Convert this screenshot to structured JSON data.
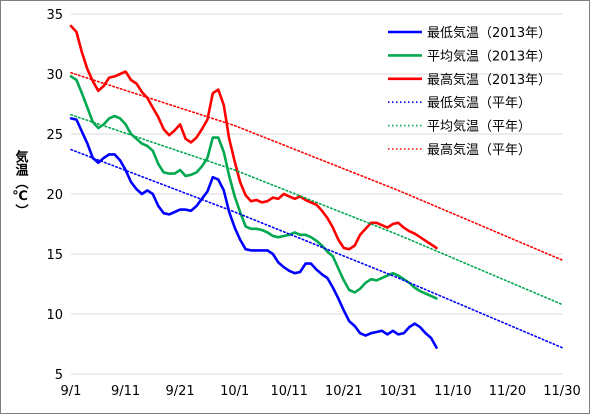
{
  "chart_data": {
    "type": "line",
    "ylabel": "気温（℃）",
    "ylim": [
      5,
      35
    ],
    "yticks": [
      5,
      10,
      15,
      20,
      25,
      30,
      35
    ],
    "xlim": [
      0,
      90
    ],
    "xticks": [
      {
        "day": 0,
        "label": "9/1"
      },
      {
        "day": 10,
        "label": "9/11"
      },
      {
        "day": 20,
        "label": "9/21"
      },
      {
        "day": 30,
        "label": "10/1"
      },
      {
        "day": 40,
        "label": "10/11"
      },
      {
        "day": 50,
        "label": "10/21"
      },
      {
        "day": 60,
        "label": "10/31"
      },
      {
        "day": 70,
        "label": "11/10"
      },
      {
        "day": 80,
        "label": "11/20"
      },
      {
        "day": 90,
        "label": "11/30"
      }
    ],
    "grid": "horizontal",
    "legend_position": "top-right",
    "series": [
      {
        "name": "最低気温（2013年）",
        "color": "#0000ff",
        "style": "solid",
        "points": [
          [
            0,
            26.3
          ],
          [
            1,
            26.2
          ],
          [
            2,
            25.2
          ],
          [
            3,
            24.2
          ],
          [
            4,
            23.0
          ],
          [
            5,
            22.6
          ],
          [
            6,
            23.0
          ],
          [
            7,
            23.3
          ],
          [
            8,
            23.3
          ],
          [
            9,
            22.8
          ],
          [
            10,
            22.0
          ],
          [
            11,
            21.0
          ],
          [
            12,
            20.4
          ],
          [
            13,
            20.0
          ],
          [
            14,
            20.3
          ],
          [
            15,
            20.0
          ],
          [
            16,
            19.0
          ],
          [
            17,
            18.4
          ],
          [
            18,
            18.3
          ],
          [
            19,
            18.5
          ],
          [
            20,
            18.7
          ],
          [
            21,
            18.7
          ],
          [
            22,
            18.6
          ],
          [
            23,
            19.0
          ],
          [
            24,
            19.6
          ],
          [
            25,
            20.2
          ],
          [
            26,
            21.4
          ],
          [
            27,
            21.2
          ],
          [
            28,
            20.3
          ],
          [
            29,
            18.5
          ],
          [
            30,
            17.2
          ],
          [
            31,
            16.2
          ],
          [
            32,
            15.4
          ],
          [
            33,
            15.3
          ],
          [
            34,
            15.3
          ],
          [
            35,
            15.3
          ],
          [
            36,
            15.3
          ],
          [
            37,
            15.0
          ],
          [
            38,
            14.3
          ],
          [
            39,
            13.9
          ],
          [
            40,
            13.6
          ],
          [
            41,
            13.4
          ],
          [
            42,
            13.5
          ],
          [
            43,
            14.2
          ],
          [
            44,
            14.2
          ],
          [
            45,
            13.7
          ],
          [
            46,
            13.3
          ],
          [
            47,
            13.0
          ],
          [
            48,
            12.2
          ],
          [
            49,
            11.3
          ],
          [
            50,
            10.3
          ],
          [
            51,
            9.4
          ],
          [
            52,
            9.0
          ],
          [
            53,
            8.4
          ],
          [
            54,
            8.2
          ],
          [
            55,
            8.4
          ],
          [
            56,
            8.5
          ],
          [
            57,
            8.6
          ],
          [
            58,
            8.3
          ],
          [
            59,
            8.6
          ],
          [
            60,
            8.3
          ],
          [
            61,
            8.4
          ],
          [
            62,
            8.9
          ],
          [
            63,
            9.2
          ],
          [
            64,
            8.9
          ],
          [
            65,
            8.4
          ],
          [
            66,
            8.0
          ],
          [
            67,
            7.2
          ]
        ]
      },
      {
        "name": "平均気温（2013年）",
        "color": "#00a84f",
        "style": "solid",
        "points": [
          [
            0,
            29.8
          ],
          [
            1,
            29.5
          ],
          [
            2,
            28.4
          ],
          [
            3,
            27.2
          ],
          [
            4,
            26.0
          ],
          [
            5,
            25.5
          ],
          [
            6,
            25.8
          ],
          [
            7,
            26.3
          ],
          [
            8,
            26.5
          ],
          [
            9,
            26.3
          ],
          [
            10,
            25.8
          ],
          [
            11,
            25.0
          ],
          [
            12,
            24.6
          ],
          [
            13,
            24.2
          ],
          [
            14,
            24.0
          ],
          [
            15,
            23.6
          ],
          [
            16,
            22.5
          ],
          [
            17,
            21.8
          ],
          [
            18,
            21.7
          ],
          [
            19,
            21.7
          ],
          [
            20,
            22.0
          ],
          [
            21,
            21.5
          ],
          [
            22,
            21.6
          ],
          [
            23,
            21.8
          ],
          [
            24,
            22.3
          ],
          [
            25,
            23.0
          ],
          [
            26,
            24.7
          ],
          [
            27,
            24.7
          ],
          [
            28,
            23.5
          ],
          [
            29,
            21.5
          ],
          [
            30,
            19.8
          ],
          [
            31,
            18.5
          ],
          [
            32,
            17.3
          ],
          [
            33,
            17.1
          ],
          [
            34,
            17.1
          ],
          [
            35,
            17.0
          ],
          [
            36,
            16.8
          ],
          [
            37,
            16.5
          ],
          [
            38,
            16.4
          ],
          [
            39,
            16.5
          ],
          [
            40,
            16.6
          ],
          [
            41,
            16.8
          ],
          [
            42,
            16.6
          ],
          [
            43,
            16.6
          ],
          [
            44,
            16.4
          ],
          [
            45,
            16.1
          ],
          [
            46,
            15.7
          ],
          [
            47,
            15.2
          ],
          [
            48,
            14.8
          ],
          [
            49,
            13.8
          ],
          [
            50,
            12.8
          ],
          [
            51,
            12.0
          ],
          [
            52,
            11.8
          ],
          [
            53,
            12.1
          ],
          [
            54,
            12.6
          ],
          [
            55,
            12.9
          ],
          [
            56,
            12.8
          ],
          [
            57,
            13.0
          ],
          [
            58,
            13.2
          ],
          [
            59,
            13.4
          ],
          [
            60,
            13.2
          ],
          [
            61,
            12.9
          ],
          [
            62,
            12.6
          ],
          [
            63,
            12.2
          ],
          [
            64,
            11.9
          ],
          [
            65,
            11.7
          ],
          [
            66,
            11.5
          ],
          [
            67,
            11.3
          ]
        ]
      },
      {
        "name": "最高気温（2013年）",
        "color": "#ff0000",
        "style": "solid",
        "points": [
          [
            0,
            34.0
          ],
          [
            1,
            33.5
          ],
          [
            2,
            31.8
          ],
          [
            3,
            30.4
          ],
          [
            4,
            29.4
          ],
          [
            5,
            28.6
          ],
          [
            6,
            29.0
          ],
          [
            7,
            29.7
          ],
          [
            8,
            29.8
          ],
          [
            9,
            30.0
          ],
          [
            10,
            30.2
          ],
          [
            11,
            29.5
          ],
          [
            12,
            29.2
          ],
          [
            13,
            28.5
          ],
          [
            14,
            28.0
          ],
          [
            15,
            27.2
          ],
          [
            16,
            26.4
          ],
          [
            17,
            25.4
          ],
          [
            18,
            24.9
          ],
          [
            19,
            25.3
          ],
          [
            20,
            25.8
          ],
          [
            21,
            24.6
          ],
          [
            22,
            24.3
          ],
          [
            23,
            24.7
          ],
          [
            24,
            25.4
          ],
          [
            25,
            26.2
          ],
          [
            26,
            28.4
          ],
          [
            27,
            28.7
          ],
          [
            28,
            27.4
          ],
          [
            29,
            24.6
          ],
          [
            30,
            22.7
          ],
          [
            31,
            21.0
          ],
          [
            32,
            19.9
          ],
          [
            33,
            19.4
          ],
          [
            34,
            19.5
          ],
          [
            35,
            19.3
          ],
          [
            36,
            19.4
          ],
          [
            37,
            19.7
          ],
          [
            38,
            19.6
          ],
          [
            39,
            20.0
          ],
          [
            40,
            19.8
          ],
          [
            41,
            19.6
          ],
          [
            42,
            19.8
          ],
          [
            43,
            19.5
          ],
          [
            44,
            19.3
          ],
          [
            45,
            19.1
          ],
          [
            46,
            18.6
          ],
          [
            47,
            18.0
          ],
          [
            48,
            17.2
          ],
          [
            49,
            16.2
          ],
          [
            50,
            15.5
          ],
          [
            51,
            15.4
          ],
          [
            52,
            15.7
          ],
          [
            53,
            16.6
          ],
          [
            54,
            17.1
          ],
          [
            55,
            17.6
          ],
          [
            56,
            17.6
          ],
          [
            57,
            17.4
          ],
          [
            58,
            17.2
          ],
          [
            59,
            17.5
          ],
          [
            60,
            17.6
          ],
          [
            61,
            17.2
          ],
          [
            62,
            16.9
          ],
          [
            63,
            16.7
          ],
          [
            64,
            16.4
          ],
          [
            65,
            16.1
          ],
          [
            66,
            15.8
          ],
          [
            67,
            15.5
          ]
        ]
      },
      {
        "name": "最低気温（平年）",
        "color": "#0000ff",
        "style": "dotted",
        "points": [
          [
            0,
            23.7
          ],
          [
            30,
            18.5
          ],
          [
            60,
            13.0
          ],
          [
            90,
            7.2
          ]
        ]
      },
      {
        "name": "平均気温（平年）",
        "color": "#00a84f",
        "style": "dotted",
        "points": [
          [
            0,
            26.6
          ],
          [
            30,
            22.0
          ],
          [
            60,
            16.6
          ],
          [
            90,
            10.8
          ]
        ]
      },
      {
        "name": "最高気温（平年）",
        "color": "#ff0000",
        "style": "dotted",
        "points": [
          [
            0,
            30.1
          ],
          [
            30,
            25.7
          ],
          [
            60,
            20.3
          ],
          [
            90,
            14.5
          ]
        ]
      }
    ]
  }
}
